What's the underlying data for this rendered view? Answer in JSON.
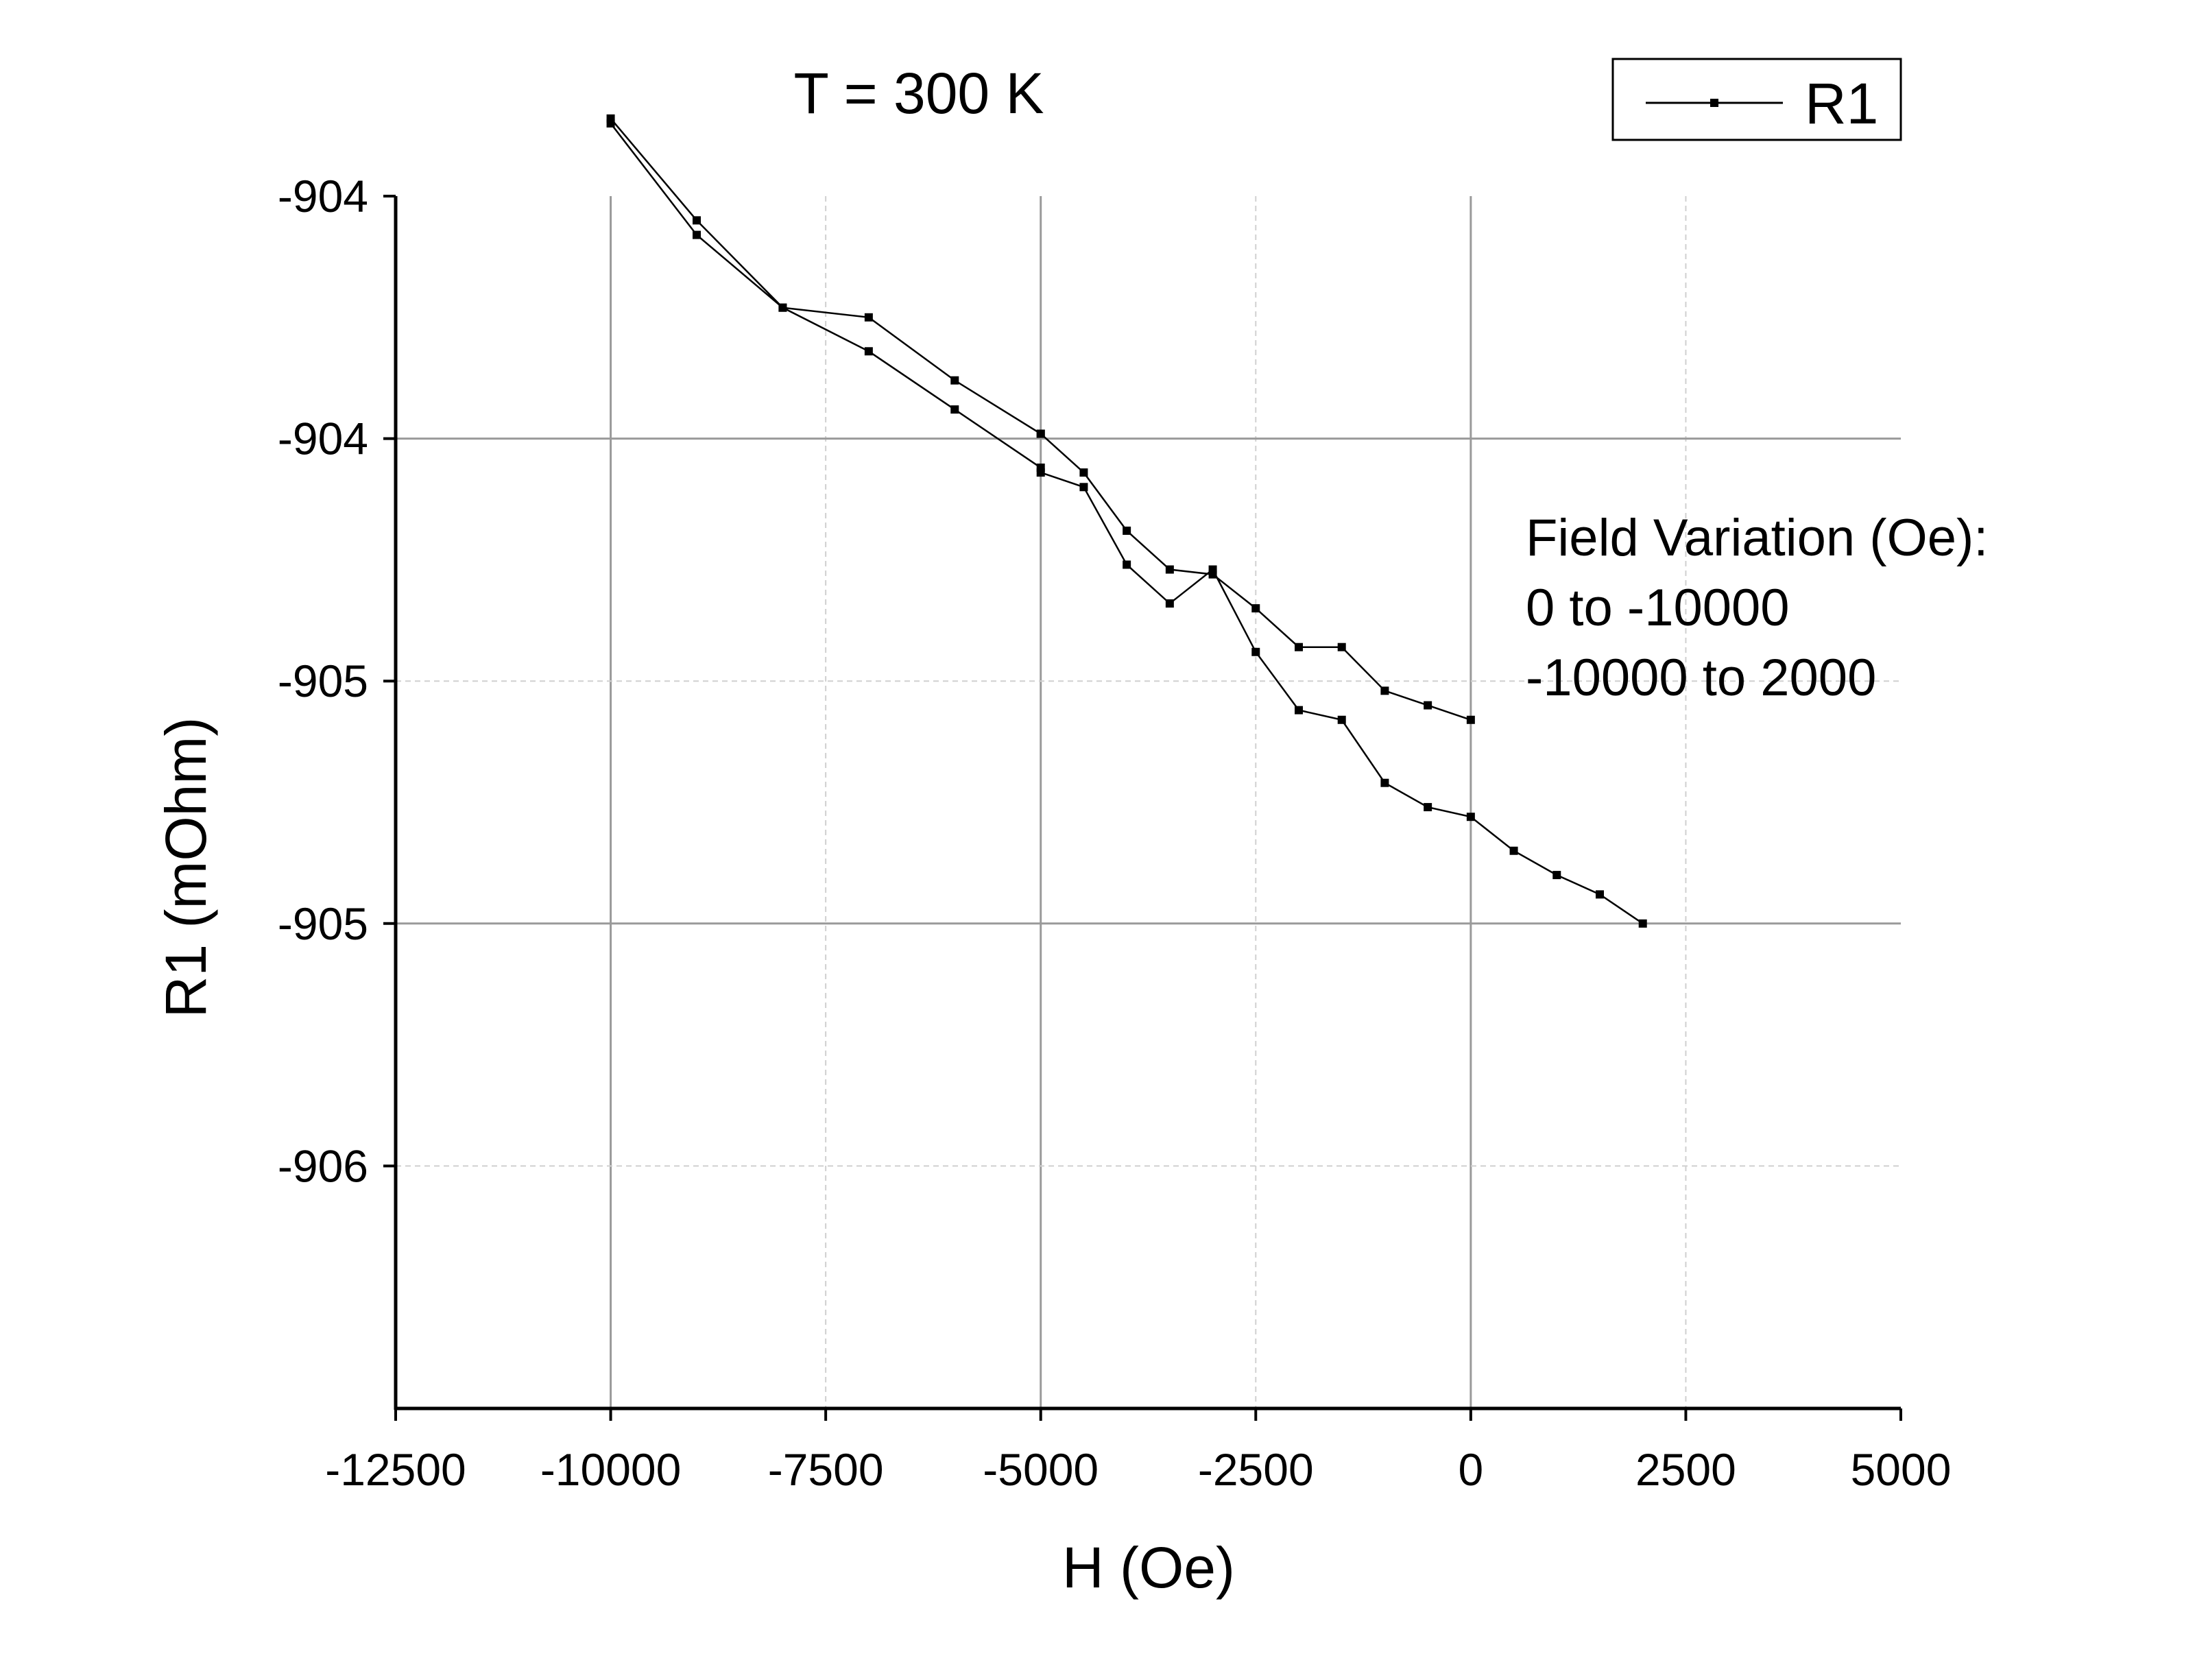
{
  "chart_data": {
    "type": "line",
    "title": "T = 300 K",
    "xlabel": "H (Oe)",
    "ylabel": "R1 (mOhm)",
    "xlim": [
      -12500,
      5000
    ],
    "ylim": [
      -906.5,
      -904.0
    ],
    "x_ticks": [
      -12500,
      -10000,
      -7500,
      -5000,
      -2500,
      0,
      2500,
      5000
    ],
    "x_tick_labels": [
      "-12500",
      "-10000",
      "-7500",
      "-5000",
      "-2500",
      "0",
      "2500",
      "5000"
    ],
    "y_ticks": [
      -904.0,
      -904.5,
      -905.0,
      -905.5,
      -906.0
    ],
    "y_tick_labels": [
      "-904",
      "-904",
      "-905",
      "-905",
      "-906"
    ],
    "grid": true,
    "legend": {
      "position": "top-right",
      "entries": [
        "R1"
      ]
    },
    "annotation": [
      "Field Variation (Oe):",
      "0 to -10000",
      "-10000 to 2000"
    ],
    "series": [
      {
        "name": "R1",
        "color": "#000000",
        "marker": "square",
        "x": [
          0,
          -500,
          -1000,
          -1500,
          -2000,
          -2500,
          -3000,
          -3500,
          -4000,
          -4500,
          -5000,
          -5000,
          -6000,
          -7000,
          -8000,
          -9000,
          -10000,
          -10000,
          -9000,
          -8000,
          -7000,
          -6000,
          -5000,
          -5000,
          -4500,
          -4000,
          -3500,
          -3000,
          -2500,
          -2000,
          -1500,
          -1000,
          -500,
          0,
          500,
          1000,
          1500,
          2000
        ],
        "y": [
          -905.08,
          -905.05,
          -905.02,
          -904.93,
          -904.93,
          -904.85,
          -904.78,
          -904.77,
          -904.69,
          -904.57,
          -904.49,
          -904.49,
          -904.38,
          -904.25,
          -904.23,
          -904.05,
          -903.84,
          -903.85,
          -904.08,
          -904.23,
          -904.32,
          -904.44,
          -904.56,
          -904.57,
          -904.6,
          -904.76,
          -904.84,
          -904.77,
          -904.94,
          -905.06,
          -905.08,
          -905.21,
          -905.26,
          -905.28,
          -905.35,
          -905.4,
          -905.44,
          -905.5
        ]
      }
    ]
  }
}
